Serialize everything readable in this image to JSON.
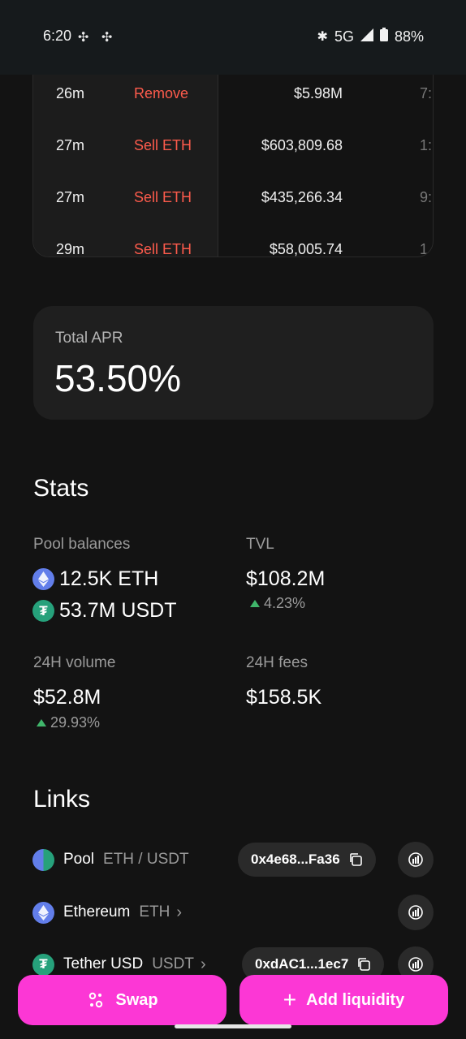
{
  "status_bar": {
    "time": "6:20",
    "network": "5G",
    "battery": "88%"
  },
  "transactions": [
    {
      "time": "26m",
      "type": "Remove",
      "amount": "$5.98M",
      "extra": "7:"
    },
    {
      "time": "27m",
      "type": "Sell ETH",
      "amount": "$603,809.68",
      "extra": "1:"
    },
    {
      "time": "27m",
      "type": "Sell ETH",
      "amount": "$435,266.34",
      "extra": "9:"
    },
    {
      "time": "29m",
      "type": "Sell ETH",
      "amount": "$58,005.74",
      "extra": "1"
    }
  ],
  "apr": {
    "label": "Total APR",
    "value": "53.50%"
  },
  "stats": {
    "title": "Stats",
    "pool_balances_label": "Pool balances",
    "balance_eth": "12.5K ETH",
    "balance_usdt": "53.7M USDT",
    "tvl_label": "TVL",
    "tvl_value": "$108.2M",
    "tvl_change": "4.23%",
    "volume_label": "24H volume",
    "volume_value": "$52.8M",
    "volume_change": "29.93%",
    "fees_label": "24H fees",
    "fees_value": "$158.5K"
  },
  "links": {
    "title": "Links",
    "items": [
      {
        "name": "Pool",
        "symbol": "ETH / USDT",
        "address": "0x4e68...Fa36"
      },
      {
        "name": "Ethereum",
        "symbol": "ETH"
      },
      {
        "name": "Tether USD",
        "symbol": "USDT",
        "address": "0xdAC1...1ec7"
      }
    ]
  },
  "buttons": {
    "swap": "Swap",
    "add_liquidity": "Add liquidity"
  },
  "colors": {
    "accent": "#fc37d5",
    "sell_red": "#fd5b4c",
    "up_green": "#40b66b",
    "eth": "#627eea",
    "usdt": "#26a17b"
  }
}
